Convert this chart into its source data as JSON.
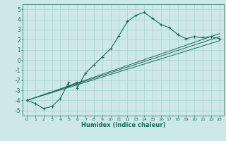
{
  "title": "",
  "xlabel": "Humidex (Indice chaleur)",
  "xlim": [
    -0.5,
    23.5
  ],
  "ylim": [
    -5.5,
    5.5
  ],
  "xticks": [
    0,
    1,
    2,
    3,
    4,
    5,
    6,
    7,
    8,
    9,
    10,
    11,
    12,
    13,
    14,
    15,
    16,
    17,
    18,
    19,
    20,
    21,
    22,
    23
  ],
  "yticks": [
    -5,
    -4,
    -3,
    -2,
    -1,
    0,
    1,
    2,
    3,
    4,
    5
  ],
  "background_color": "#cce8e8",
  "grid_color": "#aed4d4",
  "line_color": "#1a6b5a",
  "main_x": [
    0,
    1,
    2,
    3,
    4,
    5,
    5,
    6,
    6,
    7,
    8,
    9,
    10,
    11,
    12,
    13,
    14,
    15,
    16,
    17,
    18,
    19,
    20,
    21,
    22,
    23
  ],
  "main_y": [
    -4.0,
    -4.3,
    -4.8,
    -4.6,
    -3.8,
    -2.2,
    -2.6,
    -2.2,
    -2.8,
    -1.3,
    -0.5,
    0.3,
    1.1,
    2.4,
    3.8,
    4.4,
    4.7,
    4.1,
    3.5,
    3.2,
    2.5,
    2.1,
    2.3,
    2.2,
    2.3,
    2.1
  ],
  "line1_x": [
    0,
    23
  ],
  "line1_y": [
    -4.0,
    2.3
  ],
  "line2_x": [
    0,
    23
  ],
  "line2_y": [
    -4.0,
    2.6
  ],
  "line3_x": [
    0,
    23
  ],
  "line3_y": [
    -4.0,
    1.9
  ]
}
